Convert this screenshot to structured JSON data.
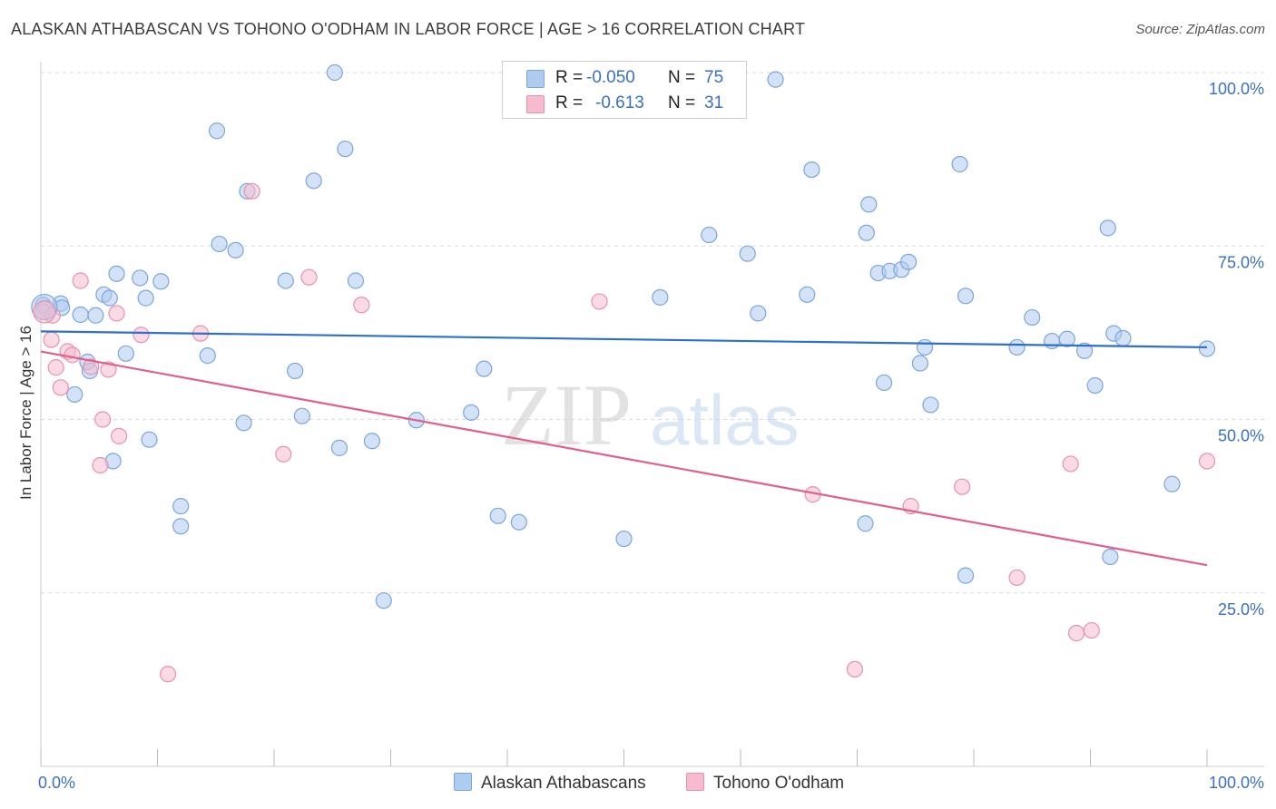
{
  "title": "ALASKAN ATHABASCAN VS TOHONO O'ODHAM IN LABOR FORCE | AGE > 16 CORRELATION CHART",
  "source": "Source: ZipAtlas.com",
  "watermark": {
    "zip": "ZIP",
    "atlas": "atlas"
  },
  "legend": {
    "r_label": "R =",
    "n_label": "N =",
    "rows": [
      {
        "r": "-0.050",
        "n": "75",
        "color": "#aecbf0"
      },
      {
        "r": "-0.613",
        "n": "31",
        "color": "#f5bccd"
      }
    ]
  },
  "bottom_legend": [
    "Alaskan Athabascans",
    "Tohono O'odham"
  ],
  "colors": {
    "blue_fill": "#aecbf0",
    "blue_stroke": "#7aa6dc",
    "blue_line": "#2f6fcb",
    "pink_fill": "#f5bccd",
    "pink_stroke": "#e891ad",
    "pink_line": "#e05f8c",
    "grid": "#d9d9d9",
    "axis_text": "#3a6fc4",
    "watermark": "#d0d0d0",
    "watermark_blue": "#c5d8ef"
  },
  "chart_data": {
    "type": "scatter",
    "title": "ALASKAN ATHABASCAN VS TOHONO O'ODHAM IN LABOR FORCE | AGE > 16 CORRELATION CHART",
    "xlabel": "",
    "ylabel": "In Labor Force | Age > 16",
    "xlim": [
      0,
      100
    ],
    "ylim": [
      0,
      100
    ],
    "x_tick_labels": [
      "0.0%",
      "100.0%"
    ],
    "y_ticks": [
      25,
      50,
      75,
      100
    ],
    "y_tick_labels": [
      "25.0%",
      "50.0%",
      "75.0%",
      "100.0%"
    ],
    "grid": true,
    "legend_placement": "top-center",
    "series": [
      {
        "name": "Alaskan Athabascans",
        "r": -0.05,
        "n": 75,
        "trend": {
          "x": [
            0,
            100
          ],
          "y": [
            62.7,
            60.4
          ]
        },
        "points": [
          [
            0.2,
            66.5
          ],
          [
            0.4,
            66.0
          ],
          [
            1.7,
            66.7
          ],
          [
            1.8,
            66.1
          ],
          [
            3.4,
            65.1
          ],
          [
            4.7,
            65.0
          ],
          [
            5.4,
            68.0
          ],
          [
            5.9,
            67.5
          ],
          [
            6.5,
            71.0
          ],
          [
            8.5,
            70.4
          ],
          [
            9.0,
            67.5
          ],
          [
            10.3,
            69.9
          ],
          [
            7.3,
            59.5
          ],
          [
            4.0,
            58.3
          ],
          [
            4.2,
            57.0
          ],
          [
            2.9,
            53.6
          ],
          [
            6.2,
            44.0
          ],
          [
            9.3,
            47.1
          ],
          [
            12.0,
            37.5
          ],
          [
            12.0,
            34.6
          ],
          [
            15.1,
            91.6
          ],
          [
            17.7,
            82.9
          ],
          [
            15.3,
            75.3
          ],
          [
            16.7,
            74.4
          ],
          [
            14.3,
            59.2
          ],
          [
            17.4,
            49.5
          ],
          [
            21.0,
            70.0
          ],
          [
            21.8,
            57.0
          ],
          [
            22.4,
            50.5
          ],
          [
            23.4,
            84.4
          ],
          [
            25.2,
            100.0
          ],
          [
            26.1,
            89.0
          ],
          [
            27.0,
            70.0
          ],
          [
            25.6,
            45.9
          ],
          [
            28.4,
            46.9
          ],
          [
            29.4,
            23.9
          ],
          [
            32.2,
            49.9
          ],
          [
            36.9,
            51.0
          ],
          [
            38.0,
            57.3
          ],
          [
            39.2,
            36.1
          ],
          [
            41.0,
            35.2
          ],
          [
            50.0,
            32.8
          ],
          [
            53.1,
            67.6
          ],
          [
            57.3,
            76.6
          ],
          [
            60.6,
            73.9
          ],
          [
            61.5,
            65.3
          ],
          [
            65.7,
            68.0
          ],
          [
            66.1,
            86.0
          ],
          [
            70.7,
            35.0
          ],
          [
            70.8,
            76.9
          ],
          [
            71.8,
            71.1
          ],
          [
            72.8,
            71.4
          ],
          [
            73.8,
            71.6
          ],
          [
            74.4,
            72.7
          ],
          [
            72.3,
            55.3
          ],
          [
            75.4,
            58.1
          ],
          [
            75.8,
            60.4
          ],
          [
            76.3,
            52.1
          ],
          [
            78.8,
            86.8
          ],
          [
            79.3,
            67.8
          ],
          [
            79.3,
            27.5
          ],
          [
            83.7,
            60.4
          ],
          [
            85.0,
            64.7
          ],
          [
            86.7,
            61.3
          ],
          [
            88.0,
            61.6
          ],
          [
            89.5,
            59.9
          ],
          [
            90.4,
            54.9
          ],
          [
            91.5,
            77.6
          ],
          [
            92.0,
            62.4
          ],
          [
            92.8,
            61.7
          ],
          [
            91.7,
            30.2
          ],
          [
            97.0,
            40.7
          ],
          [
            100.0,
            60.2
          ],
          [
            71.0,
            81.0
          ],
          [
            63.0,
            99.0
          ]
        ]
      },
      {
        "name": "Tohono O'odham",
        "r": -0.613,
        "n": 31,
        "trend": {
          "x": [
            0,
            100
          ],
          "y": [
            59.8,
            29.0
          ]
        },
        "points": [
          [
            0.2,
            65.5
          ],
          [
            0.9,
            61.5
          ],
          [
            1.3,
            57.5
          ],
          [
            1.7,
            54.6
          ],
          [
            2.3,
            59.8
          ],
          [
            2.7,
            59.3
          ],
          [
            3.4,
            70.0
          ],
          [
            4.3,
            57.6
          ],
          [
            5.1,
            43.4
          ],
          [
            5.3,
            50.0
          ],
          [
            5.8,
            57.2
          ],
          [
            6.5,
            65.3
          ],
          [
            6.7,
            47.6
          ],
          [
            8.6,
            62.2
          ],
          [
            13.7,
            62.4
          ],
          [
            10.9,
            13.3
          ],
          [
            18.1,
            82.9
          ],
          [
            20.8,
            45.0
          ],
          [
            23.0,
            70.5
          ],
          [
            27.5,
            66.5
          ],
          [
            47.9,
            67.0
          ],
          [
            66.2,
            39.2
          ],
          [
            69.8,
            14.0
          ],
          [
            74.6,
            37.5
          ],
          [
            79.0,
            40.3
          ],
          [
            83.7,
            27.2
          ],
          [
            88.3,
            43.6
          ],
          [
            88.8,
            19.2
          ],
          [
            90.1,
            19.6
          ],
          [
            100.0,
            44.0
          ],
          [
            1.0,
            65.0
          ]
        ]
      }
    ]
  }
}
